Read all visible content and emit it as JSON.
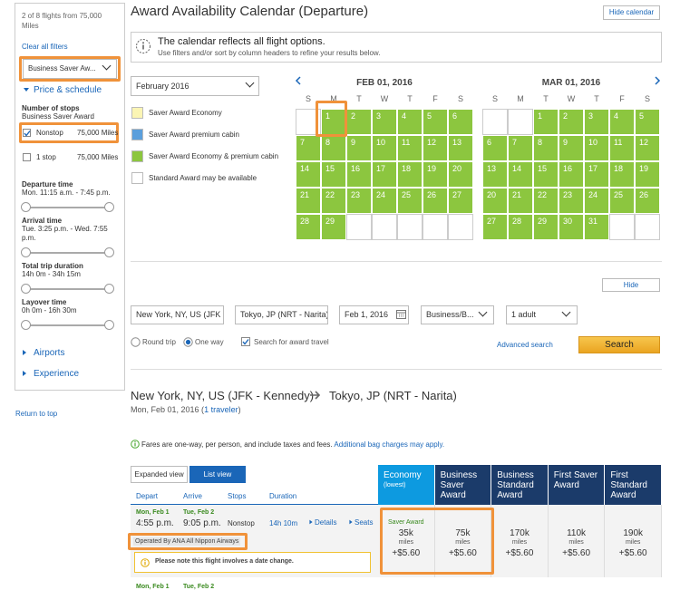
{
  "sidebar": {
    "flight_count": "2 of 8 flights from 75,000 Miles",
    "clear_filters": "Clear all filters",
    "fare_select": "Business Saver Aw...",
    "price_schedule": "Price & schedule",
    "stops_title": "Number of stops",
    "stops_sub": "Business Saver Award",
    "stops": [
      {
        "label": "Nonstop",
        "miles": "75,000 Miles",
        "checked": true
      },
      {
        "label": "1 stop",
        "miles": "75,000 Miles",
        "checked": false
      }
    ],
    "sliders": [
      {
        "title": "Departure time",
        "range": "Mon. 11:15 a.m. - 7:45 p.m."
      },
      {
        "title": "Arrival time",
        "range": "Tue. 3:25 p.m. - Wed. 7:55 p.m."
      },
      {
        "title": "Total trip duration",
        "range": "14h 0m - 34h 15m"
      },
      {
        "title": "Layover time",
        "range": "0h 0m - 16h 30m"
      }
    ],
    "airports": "Airports",
    "experience": "Experience",
    "return_to_top": "Return to top"
  },
  "header": {
    "title": "Award Availability Calendar (Departure)",
    "hide_calendar": "Hide calendar"
  },
  "notice": {
    "title": "The calendar reflects all flight options.",
    "subtitle": "Use filters and/or sort by column headers to refine your results below."
  },
  "month_select": "February 2016",
  "legend": [
    {
      "label": "Saver Award Economy",
      "color": "#fbf5b4"
    },
    {
      "label": "Saver Award premium cabin",
      "color": "#5b9fdc"
    },
    {
      "label": "Saver Award Economy & premium cabin",
      "color": "#8cc63f"
    },
    {
      "label": "Standard Award may be available",
      "color": "#ffffff"
    }
  ],
  "calendar": {
    "weekdays": [
      "S",
      "M",
      "T",
      "W",
      "T",
      "F",
      "S"
    ],
    "months": [
      {
        "title": "FEB 01, 2016",
        "weeks": [
          [
            null,
            1,
            2,
            3,
            4,
            5,
            6
          ],
          [
            7,
            8,
            9,
            10,
            11,
            12,
            13
          ],
          [
            14,
            15,
            16,
            17,
            18,
            19,
            20
          ],
          [
            21,
            22,
            23,
            24,
            25,
            26,
            27
          ],
          [
            28,
            29,
            null,
            null,
            null,
            null,
            null
          ]
        ]
      },
      {
        "title": "MAR 01, 2016",
        "weeks": [
          [
            null,
            null,
            1,
            2,
            3,
            4,
            5
          ],
          [
            6,
            7,
            8,
            9,
            10,
            11,
            12
          ],
          [
            13,
            14,
            15,
            16,
            17,
            18,
            19
          ],
          [
            20,
            21,
            22,
            23,
            24,
            25,
            26
          ],
          [
            27,
            28,
            29,
            30,
            31,
            null,
            null
          ]
        ]
      }
    ]
  },
  "search": {
    "hide": "Hide",
    "from": "New York, NY, US (JFK - K",
    "to": "Tokyo, JP (NRT - Narita)",
    "date": "Feb 1, 2016",
    "cabin": "Business/B...",
    "passengers": "1 adult",
    "round_trip": "Round trip",
    "one_way": "One way",
    "award_travel": "Search for award travel",
    "advanced": "Advanced search",
    "submit": "Search"
  },
  "results": {
    "route_from": "New York, NY, US (JFK - Kennedy)",
    "route_to": "Tokyo, JP (NRT - Narita)",
    "date_prefix": "Mon, Feb 01, 2016 (",
    "travelers": "1 traveler",
    "date_suffix": ")",
    "fares_note": "Fares are one-way, per person, and include taxes and fees.",
    "bag_link": "Additional bag charges may apply.",
    "tabs": [
      "Expanded view",
      "List view"
    ],
    "columns": [
      "Depart",
      "Arrive",
      "Stops",
      "Duration"
    ],
    "fare_columns": [
      {
        "title": "Economy",
        "sub": "(lowest)"
      },
      {
        "title": "Business Saver Award"
      },
      {
        "title": "Business Standard Award"
      },
      {
        "title": "First Saver Award"
      },
      {
        "title": "First Standard Award"
      }
    ],
    "flights": [
      {
        "depart_day": "Mon, Feb 1",
        "depart_time": "4:55 p.m.",
        "arrive_day": "Tue, Feb 2",
        "arrive_time": "9:05 p.m.",
        "stops": "Nonstop",
        "duration": "14h 10m",
        "details": "Details",
        "seats": "Seats",
        "operated_by": "Operated By ANA All Nippon Airways",
        "date_change": "Please note this flight involves a date change.",
        "fares": [
          {
            "label": "Saver Award",
            "amount": "35k",
            "unit": "miles",
            "tax": "+$5.60"
          },
          {
            "amount": "75k",
            "unit": "miles",
            "tax": "+$5.60"
          },
          {
            "amount": "170k",
            "unit": "miles",
            "tax": "+$5.60"
          },
          {
            "amount": "110k",
            "unit": "miles",
            "tax": "+$5.60"
          },
          {
            "amount": "190k",
            "unit": "miles",
            "tax": "+$5.60"
          }
        ]
      },
      {
        "depart_day": "Mon, Feb 1",
        "arrive_day": "Tue, Feb 2"
      }
    ]
  }
}
